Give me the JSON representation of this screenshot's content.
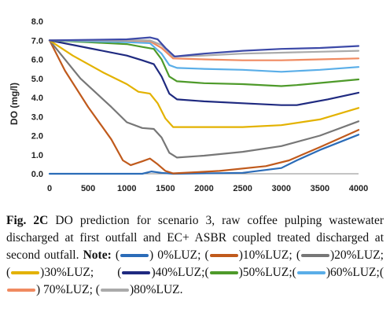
{
  "chart_data": {
    "type": "line",
    "title": "",
    "xlabel": "",
    "ylabel": "DO (mg/l)",
    "xlim": [
      0,
      4000
    ],
    "ylim": [
      0,
      8
    ],
    "x_ticks": [
      "0",
      "500",
      "1000",
      "1500",
      "2000",
      "2500",
      "3000",
      "3500",
      "4000"
    ],
    "y_ticks": [
      "0.0",
      "1.0",
      "2.0",
      "3.0",
      "4.0",
      "5.0",
      "6.0",
      "7.0",
      "8.0"
    ],
    "grid": false,
    "series": [
      {
        "name": "0%LUZ",
        "color": "#2b6cb8",
        "points": [
          [
            0,
            0
          ],
          [
            1200,
            0
          ],
          [
            1320,
            0.12
          ],
          [
            1450,
            0.05
          ],
          [
            1600,
            0
          ],
          [
            2500,
            0.05
          ],
          [
            3000,
            0.3
          ],
          [
            3200,
            0.7
          ],
          [
            3500,
            1.25
          ],
          [
            4000,
            2.05
          ]
        ]
      },
      {
        "name": "10%LUZ",
        "color": "#c05a1c",
        "points": [
          [
            0,
            7.0
          ],
          [
            200,
            5.4
          ],
          [
            500,
            3.5
          ],
          [
            800,
            1.8
          ],
          [
            950,
            0.7
          ],
          [
            1050,
            0.45
          ],
          [
            1200,
            0.65
          ],
          [
            1300,
            0.8
          ],
          [
            1400,
            0.5
          ],
          [
            1500,
            0.15
          ],
          [
            1600,
            0.02
          ],
          [
            2200,
            0.15
          ],
          [
            2800,
            0.4
          ],
          [
            3100,
            0.7
          ],
          [
            3500,
            1.4
          ],
          [
            4000,
            2.3
          ]
        ]
      },
      {
        "name": "20%LUZ",
        "color": "#777777",
        "points": [
          [
            0,
            7.0
          ],
          [
            400,
            5.0
          ],
          [
            800,
            3.5
          ],
          [
            1000,
            2.7
          ],
          [
            1200,
            2.4
          ],
          [
            1350,
            2.35
          ],
          [
            1450,
            1.9
          ],
          [
            1550,
            1.1
          ],
          [
            1650,
            0.85
          ],
          [
            2000,
            0.95
          ],
          [
            2500,
            1.15
          ],
          [
            3000,
            1.45
          ],
          [
            3500,
            2.0
          ],
          [
            4000,
            2.75
          ]
        ]
      },
      {
        "name": "30%LUZ",
        "color": "#e3b200",
        "points": [
          [
            0,
            7.0
          ],
          [
            300,
            6.2
          ],
          [
            700,
            5.3
          ],
          [
            1000,
            4.7
          ],
          [
            1150,
            4.3
          ],
          [
            1300,
            4.2
          ],
          [
            1400,
            3.7
          ],
          [
            1500,
            2.9
          ],
          [
            1600,
            2.45
          ],
          [
            2000,
            2.45
          ],
          [
            2500,
            2.45
          ],
          [
            3000,
            2.55
          ],
          [
            3500,
            2.85
          ],
          [
            4000,
            3.45
          ]
        ]
      },
      {
        "name": "40%LUZ",
        "color": "#1f2a80",
        "points": [
          [
            0,
            7.0
          ],
          [
            500,
            6.6
          ],
          [
            1000,
            6.2
          ],
          [
            1200,
            5.95
          ],
          [
            1350,
            5.75
          ],
          [
            1450,
            5.1
          ],
          [
            1550,
            4.2
          ],
          [
            1650,
            3.9
          ],
          [
            2000,
            3.8
          ],
          [
            2500,
            3.7
          ],
          [
            3000,
            3.6
          ],
          [
            3200,
            3.6
          ],
          [
            3600,
            3.9
          ],
          [
            4000,
            4.25
          ]
        ]
      },
      {
        "name": "50%LUZ",
        "color": "#4e9a2a",
        "points": [
          [
            0,
            7.0
          ],
          [
            500,
            6.9
          ],
          [
            1000,
            6.8
          ],
          [
            1200,
            6.65
          ],
          [
            1350,
            6.55
          ],
          [
            1450,
            6.0
          ],
          [
            1550,
            5.1
          ],
          [
            1650,
            4.85
          ],
          [
            2000,
            4.75
          ],
          [
            2500,
            4.7
          ],
          [
            3000,
            4.6
          ],
          [
            3200,
            4.65
          ],
          [
            3600,
            4.8
          ],
          [
            4000,
            4.95
          ]
        ]
      },
      {
        "name": "60%LUZ",
        "color": "#5aaee8",
        "points": [
          [
            0,
            7.0
          ],
          [
            500,
            6.95
          ],
          [
            1000,
            6.9
          ],
          [
            1300,
            6.85
          ],
          [
            1450,
            6.3
          ],
          [
            1550,
            5.7
          ],
          [
            1650,
            5.55
          ],
          [
            2000,
            5.5
          ],
          [
            2500,
            5.45
          ],
          [
            3000,
            5.35
          ],
          [
            3500,
            5.45
          ],
          [
            4000,
            5.6
          ]
        ]
      },
      {
        "name": "70%LUZ",
        "color": "#f08a60",
        "points": [
          [
            0,
            7.0
          ],
          [
            500,
            7.0
          ],
          [
            1000,
            6.98
          ],
          [
            1300,
            6.95
          ],
          [
            1450,
            6.6
          ],
          [
            1600,
            6.05
          ],
          [
            2000,
            6.0
          ],
          [
            2500,
            5.95
          ],
          [
            3000,
            5.95
          ],
          [
            3500,
            6.0
          ],
          [
            4000,
            6.05
          ]
        ]
      },
      {
        "name": "80%LUZ",
        "color": "#aaaaaa",
        "points": [
          [
            0,
            7.0
          ],
          [
            500,
            7.0
          ],
          [
            1000,
            7.0
          ],
          [
            1300,
            7.0
          ],
          [
            1450,
            6.75
          ],
          [
            1600,
            6.15
          ],
          [
            2000,
            6.2
          ],
          [
            2500,
            6.3
          ],
          [
            3000,
            6.35
          ],
          [
            3500,
            6.4
          ],
          [
            4000,
            6.45
          ]
        ]
      },
      {
        "name": "",
        "color": "#3d4aa8",
        "points": [
          [
            0,
            7.0
          ],
          [
            1000,
            7.05
          ],
          [
            1300,
            7.15
          ],
          [
            1400,
            7.05
          ],
          [
            1500,
            6.6
          ],
          [
            1620,
            6.15
          ],
          [
            2000,
            6.3
          ],
          [
            2500,
            6.45
          ],
          [
            3000,
            6.55
          ],
          [
            3500,
            6.6
          ],
          [
            4000,
            6.7
          ]
        ]
      }
    ]
  },
  "caption": {
    "fig_label": "Fig. 2C",
    "text_1": " DO prediction for scenario 3, raw coffee pulping wastewater discharged at first outfall and EC+ ASBR coupled treated discharged at second outfall. ",
    "note_label": "Note:",
    "legend_0": ")  0%LUZ;",
    "legend_10": ")10%LUZ;",
    "legend_20": ")20%LUZ;",
    "legend_30": ")30%LUZ;",
    "legend_40": ")40%LUZ;",
    "legend_50": ")50%LUZ;",
    "legend_60": ")60%LUZ;",
    "legend_70": ") 70%LUZ;",
    "legend_80": ")80%LUZ.",
    "open_paren": "("
  }
}
